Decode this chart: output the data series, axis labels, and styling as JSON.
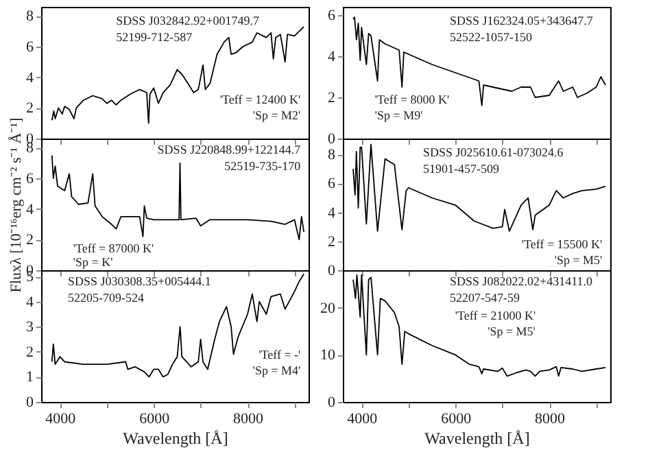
{
  "chart_data": [
    {
      "type": "line",
      "xlim": [
        3600,
        9300
      ],
      "xticks": [
        4000,
        {
          "value": 5000,
          "label": null
        },
        6000,
        {
          "value": 7000,
          "label": null
        },
        8000,
        {
          "value": 9000,
          "label": null
        }
      ],
      "ylim": [
        0,
        8.6
      ],
      "yticks": [
        0,
        2,
        4,
        6,
        8
      ],
      "tick_labels": "y",
      "marker": "none",
      "line_style": "solid",
      "annotations": [
        "SDSS J032842.92+001749.7",
        "52199-712-587",
        "'Teff = 12400 K'",
        "'Sp = M2'"
      ],
      "series": [
        {
          "color": "#000000",
          "x": [
            3830,
            3870,
            3900,
            3970,
            4050,
            4100,
            4200,
            4300,
            4350,
            4500,
            4700,
            4900,
            5000,
            5100,
            5200,
            5300,
            5500,
            5700,
            5850,
            5890,
            5920,
            6000,
            6100,
            6200,
            6350,
            6500,
            6600,
            6750,
            6850,
            6950,
            7000,
            7050,
            7100,
            7200,
            7350,
            7500,
            7600,
            7650,
            7750,
            7900,
            8100,
            8200,
            8400,
            8500,
            8550,
            8600,
            8700,
            8800,
            8850,
            9000,
            9100,
            9200
          ],
          "values": [
            1.2,
            1.8,
            1.3,
            2.0,
            1.6,
            2.1,
            1.9,
            1.3,
            2.0,
            2.5,
            2.8,
            2.6,
            2.3,
            2.5,
            2.2,
            2.5,
            2.9,
            3.2,
            3.0,
            1.0,
            2.9,
            3.3,
            2.3,
            3.0,
            3.5,
            4.5,
            4.2,
            3.5,
            3.0,
            3.2,
            4.0,
            4.8,
            3.2,
            3.6,
            5.5,
            6.3,
            6.6,
            5.5,
            5.6,
            6.0,
            6.3,
            6.9,
            6.6,
            6.9,
            5.2,
            6.6,
            6.8,
            5.0,
            6.8,
            6.7,
            7.0,
            7.3
          ]
        }
      ]
    },
    {
      "type": "line",
      "xlim": [
        3600,
        9300
      ],
      "xticks": [
        4000,
        {
          "value": 5000,
          "label": null
        },
        6000,
        {
          "value": 7000,
          "label": null
        },
        8000,
        {
          "value": 9000,
          "label": null
        }
      ],
      "ylim": [
        0,
        6.4
      ],
      "yticks": [
        0,
        2,
        4,
        6
      ],
      "tick_labels": "y",
      "marker": "none",
      "line_style": "solid",
      "annotations": [
        "SDSS J162324.05+343647.7",
        "52522-1057-150",
        "'Teff = 8000 K'",
        "'Sp = M9'"
      ],
      "series": [
        {
          "color": "#000000",
          "x": [
            3820,
            3850,
            3890,
            3930,
            3970,
            4000,
            4102,
            4150,
            4200,
            4340,
            4380,
            4500,
            4800,
            4861,
            4900,
            5000,
            5500,
            6000,
            6500,
            6563,
            6600,
            7000,
            7200,
            7400,
            7600,
            7700,
            8000,
            8200,
            8300,
            8500,
            8600,
            8800,
            9000,
            9100,
            9200
          ],
          "values": [
            5.8,
            5.9,
            4.8,
            5.6,
            3.8,
            5.4,
            3.6,
            5.1,
            5.0,
            2.8,
            4.8,
            4.6,
            4.3,
            2.5,
            4.2,
            4.1,
            3.6,
            3.2,
            2.8,
            1.6,
            2.6,
            2.4,
            2.3,
            2.5,
            2.5,
            2.0,
            2.1,
            2.8,
            2.3,
            2.5,
            2.0,
            2.2,
            2.5,
            3.0,
            2.6
          ]
        }
      ]
    },
    {
      "type": "line",
      "xlim": [
        3600,
        9300
      ],
      "xticks": [
        4000,
        {
          "value": 5000,
          "label": null
        },
        6000,
        {
          "value": 7000,
          "label": null
        },
        8000,
        {
          "value": 9000,
          "label": null
        }
      ],
      "ylim": [
        0,
        8.6
      ],
      "yticks": [
        0,
        2,
        4,
        6,
        8
      ],
      "tick_labels": "y",
      "marker": "none",
      "line_style": "solid",
      "ylabel": "Fluxλ [10⁻¹⁶erg cm⁻² s⁻¹ Å⁻¹]",
      "annotations": [
        "SDSS J220848.99+122144.7",
        "52519-735-170",
        "'Teff = 87000 K'",
        "'Sp = K'"
      ],
      "series": [
        {
          "color": "#000000",
          "x": [
            3830,
            3860,
            3900,
            3950,
            4100,
            4200,
            4250,
            4400,
            4600,
            4700,
            4750,
            4900,
            5100,
            5200,
            5300,
            5500,
            5700,
            5770,
            5800,
            5850,
            6000,
            6300,
            6540,
            6560,
            6580,
            6900,
            7000,
            7200,
            7500,
            8000,
            8500,
            8800,
            9000,
            9100,
            9150,
            9200
          ],
          "values": [
            7.5,
            6.0,
            6.8,
            5.5,
            5.2,
            6.3,
            4.8,
            4.3,
            4.4,
            6.3,
            4.2,
            3.5,
            3.0,
            2.7,
            3.5,
            3.5,
            3.5,
            2.2,
            4.2,
            3.4,
            3.3,
            3.3,
            3.3,
            7.0,
            3.3,
            3.4,
            2.9,
            3.3,
            3.3,
            3.3,
            3.2,
            3.0,
            3.3,
            2.0,
            3.5,
            2.5
          ]
        }
      ]
    },
    {
      "type": "line",
      "xlim": [
        3600,
        9300
      ],
      "xticks": [
        4000,
        {
          "value": 5000,
          "label": null
        },
        6000,
        {
          "value": 7000,
          "label": null
        },
        8000,
        {
          "value": 9000,
          "label": null
        }
      ],
      "ylim": [
        0,
        9.1
      ],
      "yticks": [
        0,
        2,
        4,
        6,
        8
      ],
      "tick_labels": "y",
      "marker": "none",
      "line_style": "solid",
      "annotations": [
        "SDSS J025610.61-073024.6",
        "51901-457-509",
        "'Teff = 15500 K'",
        "'Sp = M5'"
      ],
      "series": [
        {
          "color": "#000000",
          "x": [
            3820,
            3860,
            3889,
            3930,
            3970,
            4000,
            4102,
            4200,
            4340,
            4500,
            4700,
            4861,
            4950,
            5000,
            5500,
            6000,
            6400,
            6560,
            6800,
            7000,
            7050,
            7150,
            7400,
            7550,
            7650,
            7700,
            8000,
            8150,
            8300,
            8500,
            8700,
            9000,
            9200
          ],
          "values": [
            7.0,
            5.2,
            8.2,
            4.3,
            8.5,
            8.5,
            3.2,
            8.7,
            2.7,
            7.7,
            7.3,
            2.8,
            5.5,
            5.7,
            5.0,
            4.5,
            3.4,
            3.2,
            2.9,
            3.0,
            4.2,
            2.7,
            4.5,
            5.0,
            2.8,
            3.8,
            4.5,
            5.5,
            5.0,
            5.3,
            5.5,
            5.6,
            5.8
          ]
        }
      ]
    },
    {
      "type": "line",
      "xlim": [
        3600,
        9300
      ],
      "xticks": [
        4000,
        {
          "value": 5000,
          "label": null
        },
        6000,
        {
          "value": 7000,
          "label": null
        },
        8000,
        {
          "value": 9000,
          "label": null
        }
      ],
      "ylim": [
        0,
        5.25
      ],
      "yticks": [
        0,
        1,
        2,
        3,
        4,
        5
      ],
      "marker": "none",
      "line_style": "solid",
      "xlabel": "Wavelength [Å]",
      "annotations": [
        "SDSS J030308.35+005444.1",
        "52205-709-524",
        "'Teff = -'",
        "'Sp = M4'"
      ],
      "series": [
        {
          "color": "#000000",
          "x": [
            3830,
            3860,
            3900,
            4000,
            4100,
            4500,
            5000,
            5400,
            5450,
            5600,
            5800,
            5900,
            6000,
            6100,
            6200,
            6300,
            6400,
            6500,
            6563,
            6600,
            6800,
            6950,
            7000,
            7050,
            7150,
            7300,
            7400,
            7550,
            7650,
            7700,
            7800,
            8000,
            8100,
            8200,
            8250,
            8400,
            8500,
            8700,
            8800,
            9000,
            9100,
            9200
          ],
          "values": [
            1.6,
            2.3,
            1.5,
            1.8,
            1.6,
            1.5,
            1.5,
            1.6,
            1.3,
            1.4,
            1.2,
            1.0,
            1.3,
            1.3,
            1.0,
            1.1,
            1.5,
            1.8,
            3.0,
            1.8,
            1.4,
            1.6,
            2.5,
            1.6,
            1.3,
            2.5,
            3.2,
            3.8,
            3.0,
            1.9,
            2.6,
            3.5,
            4.3,
            3.2,
            4.0,
            3.5,
            4.2,
            4.3,
            3.7,
            4.4,
            4.8,
            5.1
          ]
        }
      ]
    },
    {
      "type": "line",
      "xlim": [
        3600,
        9300
      ],
      "xticks": [
        4000,
        {
          "value": 5000,
          "label": null
        },
        6000,
        {
          "value": 7000,
          "label": null
        },
        8000,
        {
          "value": 9000,
          "label": null
        }
      ],
      "ylim": [
        0,
        28
      ],
      "yticks": [
        0,
        10,
        20
      ],
      "marker": "none",
      "line_style": "solid",
      "xlabel": "Wavelength [Å]",
      "annotations": [
        "SDSS J082022.02+431411.0",
        "52207-547-59",
        "'Teff = 21000 K'",
        "'Sp = M5'"
      ],
      "series": [
        {
          "color": "#000000",
          "x": [
            3820,
            3870,
            3900,
            3970,
            4000,
            4102,
            4150,
            4200,
            4340,
            4400,
            4500,
            4700,
            4800,
            4861,
            4920,
            5000,
            5500,
            6000,
            6300,
            6500,
            6563,
            6600,
            6900,
            7000,
            7100,
            7300,
            7500,
            7600,
            7700,
            7800,
            8000,
            8150,
            8200,
            8250,
            8500,
            8700,
            9000,
            9200
          ],
          "values": [
            26,
            22,
            27,
            18,
            27,
            10,
            26,
            26.5,
            10,
            22,
            21.5,
            19,
            16,
            8,
            15,
            14.5,
            12,
            10,
            8,
            7.5,
            6,
            7,
            6.5,
            7.2,
            5.5,
            6.2,
            6.8,
            6.5,
            5.5,
            6.5,
            6.8,
            7.5,
            5.5,
            7.3,
            7.0,
            6.5,
            7.0,
            7.3
          ]
        }
      ]
    }
  ]
}
